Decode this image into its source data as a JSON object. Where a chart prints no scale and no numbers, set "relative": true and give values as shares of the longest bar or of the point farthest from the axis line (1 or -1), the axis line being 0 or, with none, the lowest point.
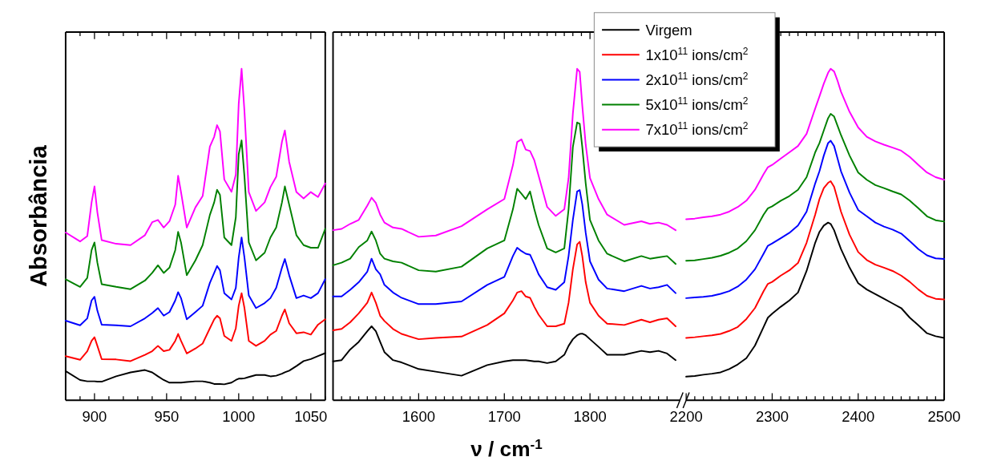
{
  "chart_data": [
    {
      "type": "line",
      "relative": true,
      "ylabel": "Absorbância",
      "xlim": [
        880,
        1060
      ],
      "xticks": [
        {
          "value": 890,
          "label": null
        },
        900,
        {
          "value": 910,
          "label": null
        },
        {
          "value": 920,
          "label": null
        },
        {
          "value": 930,
          "label": null
        },
        {
          "value": 940,
          "label": null
        },
        950,
        {
          "value": 960,
          "label": null
        },
        {
          "value": 970,
          "label": null
        },
        {
          "value": 980,
          "label": null
        },
        {
          "value": 990,
          "label": null
        },
        1000,
        {
          "value": 1010,
          "label": null
        },
        {
          "value": 1020,
          "label": null
        },
        {
          "value": 1030,
          "label": null
        },
        {
          "value": 1040,
          "label": null
        },
        1050,
        {
          "value": 1060,
          "label": null
        }
      ],
      "x": [
        880,
        890,
        895,
        898,
        900,
        902,
        905,
        915,
        925,
        935,
        940,
        944,
        948,
        952,
        956,
        958,
        960,
        964,
        970,
        975,
        980,
        983,
        985,
        987,
        990,
        995,
        998,
        1000,
        1002,
        1004,
        1007,
        1012,
        1018,
        1022,
        1026,
        1030,
        1032,
        1035,
        1040,
        1045,
        1050,
        1055,
        1060
      ],
      "series": [
        {
          "color": "#000000",
          "values": [
            0.088,
            0.061,
            0.057,
            0.057,
            0.057,
            0.056,
            0.056,
            0.072,
            0.084,
            0.091,
            0.084,
            0.072,
            0.061,
            0.053,
            0.053,
            0.053,
            0.053,
            0.055,
            0.057,
            0.057,
            0.053,
            0.049,
            0.049,
            0.049,
            0.048,
            0.053,
            0.061,
            0.065,
            0.065,
            0.066,
            0.07,
            0.076,
            0.076,
            0.072,
            0.074,
            0.08,
            0.084,
            0.089,
            0.103,
            0.118,
            0.124,
            0.133,
            0.142
          ]
        },
        {
          "color": "#ff0000",
          "values": [
            0.133,
            0.122,
            0.148,
            0.179,
            0.19,
            0.164,
            0.124,
            0.123,
            0.118,
            0.137,
            0.148,
            0.164,
            0.148,
            0.152,
            0.179,
            0.2,
            0.179,
            0.141,
            0.156,
            0.171,
            0.217,
            0.244,
            0.255,
            0.247,
            0.194,
            0.179,
            0.217,
            0.285,
            0.323,
            0.278,
            0.179,
            0.164,
            0.179,
            0.198,
            0.209,
            0.255,
            0.274,
            0.232,
            0.202,
            0.205,
            0.198,
            0.228,
            0.244
          ]
        },
        {
          "color": "#0000ff",
          "values": [
            0.24,
            0.226,
            0.247,
            0.301,
            0.312,
            0.27,
            0.228,
            0.226,
            0.223,
            0.247,
            0.263,
            0.278,
            0.255,
            0.266,
            0.301,
            0.326,
            0.308,
            0.244,
            0.266,
            0.285,
            0.354,
            0.384,
            0.405,
            0.392,
            0.323,
            0.304,
            0.339,
            0.43,
            0.491,
            0.43,
            0.316,
            0.278,
            0.293,
            0.308,
            0.339,
            0.4,
            0.426,
            0.377,
            0.308,
            0.316,
            0.308,
            0.323,
            0.365
          ]
        },
        {
          "color": "#008000",
          "values": [
            0.365,
            0.342,
            0.369,
            0.453,
            0.476,
            0.415,
            0.35,
            0.342,
            0.335,
            0.361,
            0.384,
            0.407,
            0.384,
            0.4,
            0.453,
            0.508,
            0.476,
            0.377,
            0.422,
            0.468,
            0.559,
            0.597,
            0.635,
            0.62,
            0.491,
            0.468,
            0.552,
            0.742,
            0.784,
            0.674,
            0.476,
            0.422,
            0.445,
            0.491,
            0.521,
            0.597,
            0.645,
            0.59,
            0.498,
            0.468,
            0.46,
            0.46,
            0.517
          ]
        },
        {
          "color": "#ff00ff",
          "values": [
            0.506,
            0.479,
            0.495,
            0.597,
            0.645,
            0.567,
            0.483,
            0.472,
            0.468,
            0.498,
            0.537,
            0.544,
            0.521,
            0.54,
            0.59,
            0.677,
            0.628,
            0.521,
            0.582,
            0.616,
            0.765,
            0.795,
            0.83,
            0.811,
            0.666,
            0.629,
            0.681,
            0.894,
            1.0,
            0.871,
            0.628,
            0.571,
            0.597,
            0.643,
            0.674,
            0.78,
            0.814,
            0.719,
            0.628,
            0.609,
            0.628,
            0.613,
            0.654
          ]
        }
      ]
    },
    {
      "type": "line",
      "relative": true,
      "xlabel": "ν / cm$^{-1}$",
      "legend": "top right",
      "xlim": [
        1500,
        1905
      ],
      "xticks": [
        {
          "value": 1510,
          "label": null
        },
        {
          "value": 1520,
          "label": null
        },
        {
          "value": 1530,
          "label": null
        },
        {
          "value": 1540,
          "label": null
        },
        {
          "value": 1550,
          "label": null
        },
        {
          "value": 1560,
          "label": null
        },
        {
          "value": 1570,
          "label": null
        },
        {
          "value": 1580,
          "label": null
        },
        {
          "value": 1590,
          "label": null
        },
        1600,
        {
          "value": 1610,
          "label": null
        },
        {
          "value": 1620,
          "label": null
        },
        {
          "value": 1630,
          "label": null
        },
        {
          "value": 1640,
          "label": null
        },
        {
          "value": 1650,
          "label": null
        },
        {
          "value": 1660,
          "label": null
        },
        {
          "value": 1670,
          "label": null
        },
        {
          "value": 1680,
          "label": null
        },
        {
          "value": 1690,
          "label": null
        },
        1700,
        {
          "value": 1710,
          "label": null
        },
        {
          "value": 1720,
          "label": null
        },
        {
          "value": 1730,
          "label": null
        },
        {
          "value": 1740,
          "label": null
        },
        {
          "value": 1750,
          "label": null
        },
        {
          "value": 1760,
          "label": null
        },
        {
          "value": 1770,
          "label": null
        },
        {
          "value": 1780,
          "label": null
        },
        {
          "value": 1790,
          "label": null
        },
        1800,
        {
          "value": 1810,
          "label": null
        },
        {
          "value": 1820,
          "label": null
        },
        {
          "value": 1830,
          "label": null
        },
        {
          "value": 1840,
          "label": null
        },
        {
          "value": 1850,
          "label": null
        },
        {
          "value": 1860,
          "label": null
        },
        {
          "value": 1870,
          "label": null
        },
        {
          "value": 1880,
          "label": null
        },
        {
          "value": 1890,
          "label": null
        }
      ],
      "x": [
        1500,
        1510,
        1520,
        1530,
        1540,
        1545,
        1550,
        1555,
        1560,
        1570,
        1580,
        1600,
        1620,
        1650,
        1680,
        1700,
        1710,
        1715,
        1720,
        1725,
        1730,
        1735,
        1740,
        1750,
        1760,
        1770,
        1775,
        1780,
        1785,
        1788,
        1791,
        1795,
        1800,
        1810,
        1820,
        1840,
        1860,
        1870,
        1880,
        1890,
        1900
      ],
      "series": [
        {
          "name": "Virgem",
          "color": "#000000",
          "values": [
            0.117,
            0.121,
            0.153,
            0.176,
            0.208,
            0.223,
            0.208,
            0.176,
            0.145,
            0.121,
            0.114,
            0.094,
            0.086,
            0.074,
            0.106,
            0.117,
            0.121,
            0.121,
            0.121,
            0.121,
            0.119,
            0.117,
            0.117,
            0.112,
            0.117,
            0.137,
            0.164,
            0.184,
            0.196,
            0.2,
            0.201,
            0.196,
            0.184,
            0.161,
            0.137,
            0.137,
            0.149,
            0.145,
            0.149,
            0.141,
            0.121
          ]
        },
        {
          "name": "1x10$^{11}$ ions/cm$^{2}$",
          "color": "#ff0000",
          "values": [
            0.211,
            0.215,
            0.235,
            0.262,
            0.294,
            0.325,
            0.294,
            0.255,
            0.239,
            0.215,
            0.2,
            0.184,
            0.188,
            0.192,
            0.227,
            0.262,
            0.301,
            0.325,
            0.329,
            0.313,
            0.309,
            0.282,
            0.258,
            0.223,
            0.223,
            0.231,
            0.294,
            0.395,
            0.47,
            0.478,
            0.435,
            0.356,
            0.294,
            0.255,
            0.231,
            0.227,
            0.243,
            0.235,
            0.243,
            0.247,
            0.223
          ]
        },
        {
          "name": "2x10$^{11}$ ions/cm$^{2}$",
          "color": "#0000ff",
          "values": [
            0.313,
            0.313,
            0.333,
            0.356,
            0.388,
            0.427,
            0.395,
            0.38,
            0.348,
            0.325,
            0.309,
            0.29,
            0.29,
            0.298,
            0.348,
            0.372,
            0.435,
            0.46,
            0.45,
            0.442,
            0.439,
            0.411,
            0.38,
            0.341,
            0.333,
            0.356,
            0.435,
            0.544,
            0.63,
            0.634,
            0.591,
            0.505,
            0.419,
            0.364,
            0.337,
            0.329,
            0.345,
            0.337,
            0.341,
            0.348,
            0.323
          ]
        },
        {
          "name": "5x10$^{11}$ ions/cm$^{2}$",
          "color": "#008000",
          "values": [
            0.407,
            0.415,
            0.427,
            0.462,
            0.482,
            0.509,
            0.482,
            0.442,
            0.427,
            0.419,
            0.415,
            0.392,
            0.388,
            0.403,
            0.458,
            0.482,
            0.576,
            0.638,
            0.623,
            0.607,
            0.63,
            0.576,
            0.529,
            0.458,
            0.446,
            0.458,
            0.576,
            0.764,
            0.838,
            0.834,
            0.764,
            0.654,
            0.544,
            0.482,
            0.442,
            0.419,
            0.435,
            0.427,
            0.431,
            0.435,
            0.411
          ]
        },
        {
          "name": "7x10$^{11}$ ions/cm$^{2}$",
          "color": "#ff00ff",
          "values": [
            0.513,
            0.517,
            0.532,
            0.544,
            0.587,
            0.611,
            0.595,
            0.56,
            0.536,
            0.521,
            0.517,
            0.493,
            0.497,
            0.525,
            0.576,
            0.607,
            0.709,
            0.779,
            0.787,
            0.756,
            0.752,
            0.724,
            0.677,
            0.583,
            0.556,
            0.576,
            0.67,
            0.865,
            1.0,
            0.991,
            0.889,
            0.771,
            0.67,
            0.607,
            0.56,
            0.529,
            0.54,
            0.532,
            0.536,
            0.529,
            0.513
          ]
        }
      ]
    },
    {
      "type": "line",
      "relative": true,
      "xlim": [
        2200,
        2500
      ],
      "xticks": [
        2200,
        {
          "value": 2210,
          "label": null
        },
        {
          "value": 2220,
          "label": null
        },
        {
          "value": 2230,
          "label": null
        },
        {
          "value": 2240,
          "label": null
        },
        {
          "value": 2250,
          "label": null
        },
        {
          "value": 2260,
          "label": null
        },
        {
          "value": 2270,
          "label": null
        },
        {
          "value": 2280,
          "label": null
        },
        {
          "value": 2290,
          "label": null
        },
        2300,
        {
          "value": 2310,
          "label": null
        },
        {
          "value": 2320,
          "label": null
        },
        {
          "value": 2330,
          "label": null
        },
        {
          "value": 2340,
          "label": null
        },
        {
          "value": 2350,
          "label": null
        },
        {
          "value": 2360,
          "label": null
        },
        {
          "value": 2370,
          "label": null
        },
        {
          "value": 2380,
          "label": null
        },
        {
          "value": 2390,
          "label": null
        },
        2400,
        {
          "value": 2410,
          "label": null
        },
        {
          "value": 2420,
          "label": null
        },
        {
          "value": 2430,
          "label": null
        },
        {
          "value": 2440,
          "label": null
        },
        {
          "value": 2450,
          "label": null
        },
        {
          "value": 2460,
          "label": null
        },
        {
          "value": 2470,
          "label": null
        },
        {
          "value": 2480,
          "label": null
        },
        {
          "value": 2490,
          "label": null
        },
        2500
      ],
      "x": [
        2200,
        2210,
        2220,
        2230,
        2240,
        2250,
        2260,
        2270,
        2280,
        2290,
        2295,
        2300,
        2310,
        2320,
        2330,
        2340,
        2350,
        2355,
        2360,
        2365,
        2368,
        2372,
        2376,
        2380,
        2390,
        2400,
        2410,
        2420,
        2430,
        2440,
        2450,
        2460,
        2470,
        2480,
        2490,
        2500
      ],
      "series": [
        {
          "color": "#000000",
          "values": [
            0.071,
            0.073,
            0.077,
            0.08,
            0.084,
            0.094,
            0.108,
            0.127,
            0.165,
            0.221,
            0.249,
            0.261,
            0.282,
            0.301,
            0.325,
            0.39,
            0.475,
            0.508,
            0.527,
            0.536,
            0.532,
            0.513,
            0.484,
            0.456,
            0.4,
            0.353,
            0.334,
            0.32,
            0.306,
            0.292,
            0.278,
            0.249,
            0.226,
            0.202,
            0.193,
            0.188
          ]
        },
        {
          "color": "#ff0000",
          "values": [
            0.188,
            0.19,
            0.193,
            0.196,
            0.2,
            0.209,
            0.221,
            0.245,
            0.278,
            0.329,
            0.351,
            0.357,
            0.376,
            0.392,
            0.414,
            0.475,
            0.56,
            0.607,
            0.64,
            0.656,
            0.661,
            0.644,
            0.607,
            0.569,
            0.499,
            0.447,
            0.423,
            0.409,
            0.4,
            0.39,
            0.376,
            0.357,
            0.334,
            0.315,
            0.306,
            0.304
          ]
        },
        {
          "color": "#0000ff",
          "values": [
            0.308,
            0.31,
            0.312,
            0.315,
            0.321,
            0.329,
            0.343,
            0.364,
            0.395,
            0.442,
            0.466,
            0.473,
            0.489,
            0.505,
            0.527,
            0.569,
            0.654,
            0.691,
            0.738,
            0.776,
            0.783,
            0.767,
            0.729,
            0.691,
            0.626,
            0.574,
            0.555,
            0.536,
            0.524,
            0.515,
            0.503,
            0.48,
            0.456,
            0.437,
            0.428,
            0.426
          ]
        },
        {
          "color": "#008000",
          "values": [
            0.421,
            0.422,
            0.426,
            0.43,
            0.436,
            0.445,
            0.458,
            0.48,
            0.513,
            0.56,
            0.579,
            0.585,
            0.602,
            0.616,
            0.635,
            0.673,
            0.748,
            0.776,
            0.814,
            0.851,
            0.864,
            0.856,
            0.828,
            0.8,
            0.738,
            0.687,
            0.665,
            0.649,
            0.64,
            0.63,
            0.621,
            0.602,
            0.579,
            0.555,
            0.543,
            0.539
          ]
        },
        {
          "color": "#ff00ff",
          "values": [
            0.546,
            0.548,
            0.552,
            0.555,
            0.56,
            0.569,
            0.583,
            0.602,
            0.635,
            0.682,
            0.703,
            0.71,
            0.729,
            0.748,
            0.767,
            0.804,
            0.88,
            0.917,
            0.955,
            0.988,
            1.0,
            0.992,
            0.964,
            0.931,
            0.87,
            0.823,
            0.795,
            0.781,
            0.771,
            0.762,
            0.753,
            0.734,
            0.71,
            0.687,
            0.673,
            0.665
          ]
        }
      ]
    }
  ]
}
